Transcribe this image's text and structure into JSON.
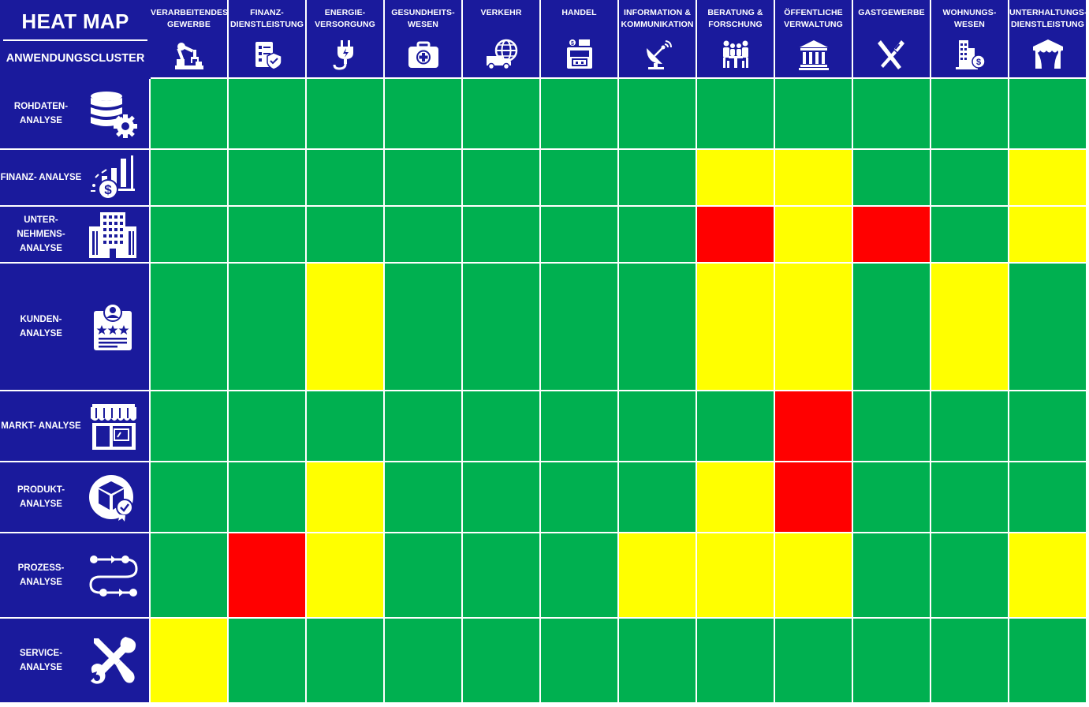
{
  "title": "HEAT MAP",
  "subtitle": "ANWENDUNGSCLUSTER",
  "colors": {
    "header_bg": "#1a1a9c",
    "green": "#00b050",
    "yellow": "#ffff00",
    "red": "#ff0000",
    "grid": "#ffffff"
  },
  "columns": [
    {
      "label": "VERARBEITENDES GEWERBE",
      "icon": "industrial-robot-icon"
    },
    {
      "label": "FINANZ- DIENSTLEISTUNG",
      "icon": "finance-checklist-shield-icon"
    },
    {
      "label": "ENERGIE- VERSORGUNG",
      "icon": "power-plug-icon"
    },
    {
      "label": "GESUNDHEITS- WESEN",
      "icon": "first-aid-kit-icon"
    },
    {
      "label": "VERKEHR",
      "icon": "delivery-truck-globe-icon"
    },
    {
      "label": "HANDEL",
      "icon": "shop-register-icon"
    },
    {
      "label": "INFORMATION & KOMMUNIKATION",
      "icon": "satellite-dish-icon"
    },
    {
      "label": "BERATUNG & FORSCHUNG",
      "icon": "meeting-people-icon"
    },
    {
      "label": "ÖFFENTLICHE VERWALTUNG",
      "icon": "government-building-icon"
    },
    {
      "label": "GASTGEWERBE",
      "icon": "fork-knife-icon"
    },
    {
      "label": "WOHNUNGS- WESEN",
      "icon": "buildings-money-icon"
    },
    {
      "label": "UNTERHALTUNGS- DIENSTLEISTUNG",
      "icon": "event-tent-icon"
    }
  ],
  "rows": [
    {
      "label": "ROHDATEN- ANALYSE",
      "icon": "database-gear-icon"
    },
    {
      "label": "FINANZ- ANALYSE",
      "icon": "bar-chart-dollar-icon"
    },
    {
      "label": "UNTER- NEHMENS- ANALYSE",
      "icon": "office-building-icon"
    },
    {
      "label": "KUNDEN- ANALYSE",
      "icon": "customer-rating-card-icon"
    },
    {
      "label": "MARKT- ANALYSE",
      "icon": "storefront-icon"
    },
    {
      "label": "PRODUKT- ANALYSE",
      "icon": "product-box-check-icon"
    },
    {
      "label": "PROZESS- ANALYSE",
      "icon": "process-flow-icon"
    },
    {
      "label": "SERVICE- ANALYSE",
      "icon": "wrench-screwdriver-icon"
    }
  ],
  "chart_data": {
    "type": "heatmap",
    "title": "HEAT MAP",
    "xlabel": "",
    "ylabel": "ANWENDUNGSCLUSTER",
    "legend": "none",
    "x": [
      "VERARBEITENDES GEWERBE",
      "FINANZ- DIENSTLEISTUNG",
      "ENERGIE- VERSORGUNG",
      "GESUNDHEITS- WESEN",
      "VERKEHR",
      "HANDEL",
      "INFORMATION & KOMMUNIKATION",
      "BERATUNG & FORSCHUNG",
      "ÖFFENTLICHE VERWALTUNG",
      "GASTGEWERBE",
      "WOHNUNGS- WESEN",
      "UNTERHALTUNGS- DIENSTLEISTUNG"
    ],
    "y": [
      "ROHDATEN- ANALYSE",
      "FINANZ- ANALYSE",
      "UNTER- NEHMENS- ANALYSE",
      "KUNDEN- ANALYSE",
      "MARKT- ANALYSE",
      "PRODUKT- ANALYSE",
      "PROZESS- ANALYSE",
      "SERVICE- ANALYSE"
    ],
    "values": [
      [
        "green",
        "green",
        "green",
        "green",
        "green",
        "green",
        "green",
        "green",
        "green",
        "green",
        "green",
        "green"
      ],
      [
        "green",
        "green",
        "green",
        "green",
        "green",
        "green",
        "green",
        "yellow",
        "yellow",
        "green",
        "green",
        "yellow"
      ],
      [
        "green",
        "green",
        "green",
        "green",
        "green",
        "green",
        "green",
        "red",
        "yellow",
        "red",
        "green",
        "yellow"
      ],
      [
        "green",
        "green",
        "yellow",
        "green",
        "green",
        "green",
        "green",
        "yellow",
        "yellow",
        "green",
        "yellow",
        "green"
      ],
      [
        "green",
        "green",
        "green",
        "green",
        "green",
        "green",
        "green",
        "green",
        "red",
        "green",
        "green",
        "green"
      ],
      [
        "green",
        "green",
        "yellow",
        "green",
        "green",
        "green",
        "green",
        "yellow",
        "red",
        "green",
        "green",
        "green"
      ],
      [
        "green",
        "red",
        "yellow",
        "green",
        "green",
        "green",
        "yellow",
        "yellow",
        "yellow",
        "green",
        "green",
        "yellow"
      ],
      [
        "yellow",
        "green",
        "green",
        "green",
        "green",
        "green",
        "green",
        "green",
        "green",
        "green",
        "green",
        "green"
      ]
    ]
  }
}
